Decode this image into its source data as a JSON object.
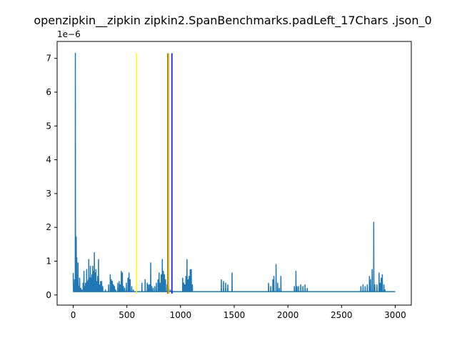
{
  "chart_data": {
    "type": "line",
    "title": "openzipkin__zipkin zipkin2.SpanBenchmarks.padLeft_17Chars .json_0",
    "xlabel": "",
    "ylabel": "",
    "y_offset_label": "1e−6",
    "xlim": [
      -150,
      3150
    ],
    "ylim": [
      -0.3,
      7.5
    ],
    "x_ticks": [
      0,
      500,
      1000,
      1500,
      2000,
      2500,
      3000
    ],
    "x_tick_labels": [
      "0",
      "500",
      "1000",
      "1500",
      "2000",
      "2500",
      "3000"
    ],
    "y_ticks": [
      0,
      1,
      2,
      3,
      4,
      5,
      6,
      7
    ],
    "y_tick_labels": [
      "0",
      "1",
      "2",
      "3",
      "4",
      "5",
      "6",
      "7"
    ],
    "grid": false,
    "series": [
      {
        "color": "#1f77b4",
        "baseline": 0.1,
        "x_max": 3000,
        "peaks": [
          [
            0,
            0.65
          ],
          [
            5,
            0.3
          ],
          [
            12,
            0.45
          ],
          [
            20,
            7.15
          ],
          [
            25,
            0.3
          ],
          [
            28,
            1.72
          ],
          [
            33,
            1.1
          ],
          [
            38,
            0.4
          ],
          [
            45,
            0.95
          ],
          [
            52,
            0.25
          ],
          [
            60,
            0.5
          ],
          [
            70,
            0.2
          ],
          [
            80,
            0.15
          ],
          [
            92,
            0.35
          ],
          [
            100,
            0.7
          ],
          [
            108,
            0.25
          ],
          [
            115,
            0.35
          ],
          [
            125,
            0.75
          ],
          [
            132,
            0.4
          ],
          [
            140,
            0.45
          ],
          [
            145,
            1.05
          ],
          [
            152,
            0.5
          ],
          [
            160,
            0.85
          ],
          [
            168,
            0.5
          ],
          [
            175,
            0.6
          ],
          [
            182,
            0.85
          ],
          [
            190,
            0.7
          ],
          [
            197,
            1.25
          ],
          [
            205,
            0.65
          ],
          [
            212,
            0.75
          ],
          [
            220,
            0.4
          ],
          [
            228,
            0.55
          ],
          [
            236,
            1.05
          ],
          [
            245,
            0.3
          ],
          [
            255,
            0.4
          ],
          [
            265,
            0.4
          ],
          [
            275,
            0.25
          ],
          [
            300,
            0.15
          ],
          [
            330,
            0.3
          ],
          [
            345,
            0.6
          ],
          [
            355,
            0.45
          ],
          [
            365,
            0.4
          ],
          [
            375,
            0.3
          ],
          [
            385,
            0.25
          ],
          [
            395,
            0.15
          ],
          [
            415,
            0.35
          ],
          [
            428,
            0.4
          ],
          [
            438,
            0.3
          ],
          [
            448,
            0.7
          ],
          [
            458,
            0.65
          ],
          [
            468,
            0.25
          ],
          [
            480,
            0.2
          ],
          [
            495,
            0.35
          ],
          [
            510,
            0.5
          ],
          [
            520,
            0.65
          ],
          [
            530,
            0.45
          ],
          [
            545,
            0.25
          ],
          [
            560,
            0.15
          ],
          [
            640,
            0.35
          ],
          [
            670,
            0.45
          ],
          [
            690,
            0.35
          ],
          [
            700,
            0.3
          ],
          [
            712,
            0.3
          ],
          [
            722,
            0.95
          ],
          [
            732,
            0.25
          ],
          [
            745,
            0.2
          ],
          [
            760,
            0.25
          ],
          [
            775,
            0.35
          ],
          [
            790,
            0.45
          ],
          [
            800,
            0.65
          ],
          [
            810,
            0.35
          ],
          [
            820,
            0.6
          ],
          [
            830,
            1.05
          ],
          [
            840,
            0.7
          ],
          [
            850,
            0.6
          ],
          [
            860,
            0.45
          ],
          [
            875,
            0.3
          ],
          [
            890,
            0.2
          ],
          [
            905,
            0.15
          ],
          [
            1020,
            0.5
          ],
          [
            1030,
            0.35
          ],
          [
            1040,
            0.3
          ],
          [
            1050,
            0.55
          ],
          [
            1060,
            1.05
          ],
          [
            1070,
            0.45
          ],
          [
            1080,
            0.55
          ],
          [
            1090,
            0.75
          ],
          [
            1100,
            0.75
          ],
          [
            1110,
            0.3
          ],
          [
            1380,
            0.45
          ],
          [
            1400,
            0.4
          ],
          [
            1420,
            0.35
          ],
          [
            1440,
            0.3
          ],
          [
            1480,
            0.65
          ],
          [
            1820,
            0.35
          ],
          [
            1840,
            0.25
          ],
          [
            1860,
            0.45
          ],
          [
            1870,
            0.55
          ],
          [
            1890,
            0.9
          ],
          [
            1905,
            0.35
          ],
          [
            1920,
            0.2
          ],
          [
            1935,
            0.55
          ],
          [
            2060,
            0.25
          ],
          [
            2075,
            0.7
          ],
          [
            2085,
            0.25
          ],
          [
            2100,
            0.25
          ],
          [
            2120,
            0.3
          ],
          [
            2140,
            0.25
          ],
          [
            2160,
            0.3
          ],
          [
            2180,
            0.2
          ],
          [
            2680,
            0.25
          ],
          [
            2700,
            0.3
          ],
          [
            2720,
            0.25
          ],
          [
            2740,
            0.3
          ],
          [
            2760,
            0.55
          ],
          [
            2770,
            0.45
          ],
          [
            2785,
            0.75
          ],
          [
            2800,
            2.15
          ],
          [
            2810,
            0.3
          ],
          [
            2830,
            0.3
          ],
          [
            2850,
            0.65
          ],
          [
            2860,
            0.35
          ],
          [
            2870,
            0.5
          ],
          [
            2880,
            0.6
          ],
          [
            2895,
            0.3
          ],
          [
            2905,
            0.15
          ]
        ]
      }
    ],
    "vertical_lines": [
      {
        "x": 590,
        "color": "#ffff00"
      },
      {
        "x": 880,
        "color": "#808000"
      },
      {
        "x": 888,
        "color": "#ffa500"
      },
      {
        "x": 920,
        "color": "#0000ff"
      }
    ],
    "vertical_line_top": 7.15
  }
}
